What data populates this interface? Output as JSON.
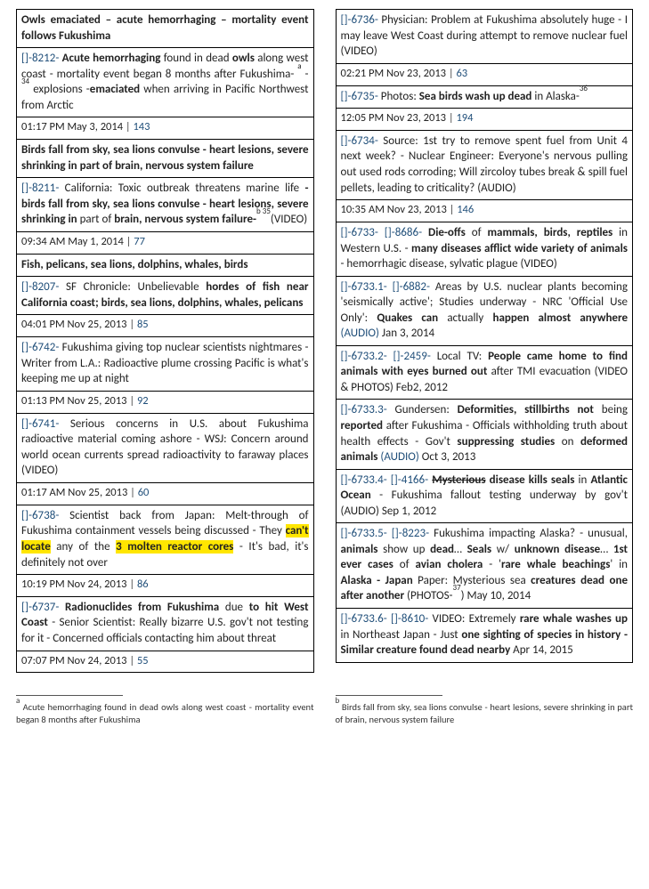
{
  "left": [
    {
      "type": "header",
      "html": "Owls emaciated – acute hemorrhaging – mortality event follows Fukushima"
    },
    {
      "type": "entry",
      "id": "8212",
      "html": "<b>Acute hemorrhaging</b> found in dead <b>owls</b> along west coast - mortality event began 8 months after Fukushima- <sup>a</sup> - <sup>34</sup> explosions -<b>emaciated</b> when arriving in Pacific Northwest from Arctic"
    },
    {
      "type": "meta",
      "time": "01:17 PM May 3, 2014",
      "count": "143"
    },
    {
      "type": "header",
      "html": "Birds fall from sky, sea lions convulse - heart lesions, severe shrinking in part of brain, nervous system failure"
    },
    {
      "type": "entry",
      "id": "8211",
      "html": "California: Toxic outbreak threatens marine life <b>- birds fall from sky, sea lions convulse - heart lesions, severe shrinking in</b> part of <b>brain, nervous system failure-</b><sup>b 35</sup>(VIDEO)"
    },
    {
      "type": "meta",
      "time": "09:34 AM May 1, 2014",
      "count": "77"
    },
    {
      "type": "header",
      "html": "Fish, pelicans, sea lions, dolphins, whales, birds"
    },
    {
      "type": "entry",
      "id": "8207",
      "html": "SF Chronicle: Unbelievable <b>hordes of fish near California coast; birds, sea lions, dolphins, whales, pelicans</b>"
    },
    {
      "type": "meta",
      "time": "04:01 PM Nov 25, 2013",
      "count": "85"
    },
    {
      "type": "entry",
      "id": "6742",
      "html": "Fukushima giving top nuclear scientists nightmares - Writer from L.A.: Radioactive plume crossing Pacific is what's keeping me up at night"
    },
    {
      "type": "meta",
      "time": "01:13 PM Nov 25, 2013",
      "count": "92"
    },
    {
      "type": "entry",
      "id": "6741",
      "html": "Serious concerns in U.S. about Fukushima radioactive material coming ashore - WSJ: Concern around world ocean currents spread radioactivity to faraway places (VIDEO)"
    },
    {
      "type": "meta",
      "time": "01:17 AM Nov 25, 2013",
      "count": "60"
    },
    {
      "type": "entry",
      "id": "6738",
      "html": "Scientist back from Japan: Melt-through of Fukushima containment vessels being discussed - They <span class=\"hl\"><b>can't locate</b></span> any of the <span class=\"hl\"><b>3 molten reactor cores</b></span> - It's bad, it's definitely not over"
    },
    {
      "type": "meta",
      "time": "10:19 PM Nov 24, 2013",
      "count": "86"
    },
    {
      "type": "entry",
      "id": "6737",
      "html": "<b>Radionuclides from Fukushima</b> due <b>to hit West Coast</b> - Senior Scientist: Really bizarre U.S. gov't not testing for it - Concerned officials contacting him about threat"
    },
    {
      "type": "meta",
      "time": "07:07 PM Nov 24, 2013",
      "count": "55"
    }
  ],
  "right": [
    {
      "type": "entry",
      "id": "6736",
      "html": "Physician: Problem at Fukushima absolutely huge - I may leave West Coast during attempt to remove nuclear fuel (VIDEO)"
    },
    {
      "type": "meta",
      "time": "02:21 PM Nov 23, 2013",
      "count": "63"
    },
    {
      "type": "entry",
      "id": "6735",
      "html": "Photos: <b>Sea birds wash up dead</b> in Alaska-<sup>36</sup>"
    },
    {
      "type": "meta",
      "time": "12:05 PM Nov 23, 2013",
      "count": "194"
    },
    {
      "type": "entry",
      "id": "6734",
      "html": "Source: 1st try to remove spent fuel from Unit 4 next week? - Nuclear Engineer: Everyone's nervous pulling out used rods corroding; Will zircoloy tubes break &amp; spill fuel pellets, leading to criticality? (AUDIO)"
    },
    {
      "type": "meta",
      "time": "10:35 AM Nov 23, 2013",
      "count": "146"
    },
    {
      "type": "entry",
      "id": "6733",
      "id2": "8686",
      "html": "<b>Die-offs</b> of <b>mammals, birds, reptiles</b> in Western U.S. - <b>many diseases afflict wide variety of animals</b> - hemorrhagic disease, sylvatic plague (VIDEO)"
    },
    {
      "type": "entry",
      "id": "6733.1",
      "id2": "6882",
      "html": "Areas by U.S. nuclear plants becoming 'seismically active'; Studies underway - NRC 'Official Use Only': <b>Quakes can</b> actually <b>happen almost anywhere</b> <span class=\"link\">(AUDIO)</span> Jan 3, 2014"
    },
    {
      "type": "entry",
      "id": "6733.2",
      "id2": "2459",
      "html": "Local TV: <b>People came home to find animals with eyes burned out</b> after TMI evacuation (VIDEO &amp; PHOTOS) Feb2, 2012"
    },
    {
      "type": "entry",
      "id": "6733.3",
      "html": "Gundersen: <b>Deformities, stillbirths not</b> being <b>reported</b> after Fukushima - Officials withholding truth about health effects - Gov't <b>suppressing studies</b> on <b>deformed animals</b> <span class=\"link\">(AUDIO)</span> Oct 3, 2013"
    },
    {
      "type": "entry",
      "id": "6733.4",
      "id2": "4166",
      "html": "<b><span class=\"strike\">Mysterious</span> disease kills seals</b> in <b>Atlantic Ocean</b> - Fukushima fallout testing underway by gov't (AUDIO) Sep 1, 2012"
    },
    {
      "type": "entry",
      "id": "6733.5",
      "id2": "8223",
      "html": "Fukushima impacting Alaska? - unusual, <b>animals</b> show up <b>dead</b>… <b>Seals</b> w/ <b>unknown disease</b>… <b>1st ever cases</b> of <b>avian cholera</b> - '<b>rare whale beachings</b>' in <b>Alaska - Japan</b> Paper: Mysterious sea <b>creatures dead one after another</b> (PHOTOS-<sup>37</sup>) May 10, 2014"
    },
    {
      "type": "entry",
      "id": "6733.6",
      "id2": "8610",
      "html": "VIDEO: Extremely <b>rare whale washes up</b> in Northeast Japan - Just <b>one sighting of species in history - Similar creature found dead nearby</b> Apr 14, 2015"
    }
  ],
  "footnotes": {
    "a": "Acute hemorrhaging found in dead owls along west coast - mortality event began 8 months after Fukushima",
    "b": "Birds fall from sky, sea lions convulse - heart lesions, severe shrinking in part of brain, nervous system failure"
  }
}
